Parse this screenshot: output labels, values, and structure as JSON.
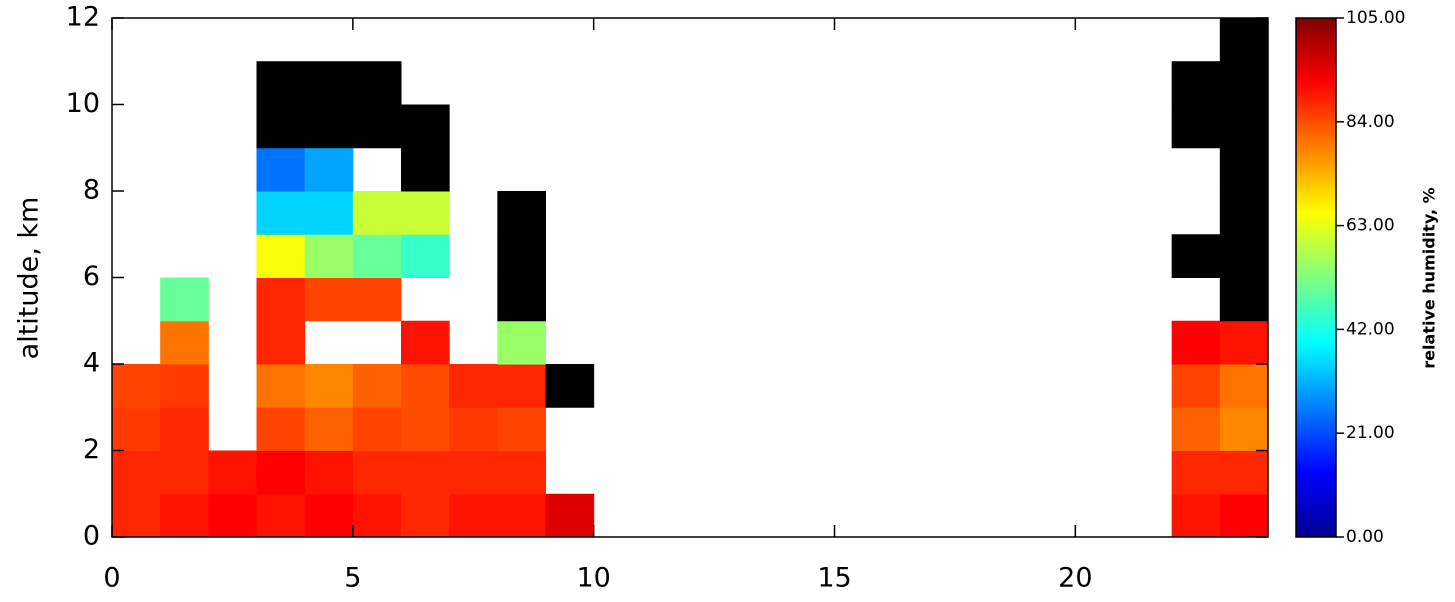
{
  "chart_data": {
    "type": "heatmap",
    "ylabel": "altitude, km",
    "colorbar_label": "relative humidity, %",
    "x": [
      0,
      1,
      2,
      3,
      4,
      5,
      6,
      7,
      8,
      9,
      10,
      11,
      12,
      13,
      14,
      15,
      16,
      17,
      18,
      19,
      20,
      21,
      22,
      23,
      24
    ],
    "y": [
      0,
      1,
      2,
      3,
      4,
      5,
      6,
      7,
      8,
      9,
      10,
      11,
      12
    ],
    "values": [
      [
        88,
        90,
        92,
        90,
        92,
        90,
        88,
        90,
        90,
        95,
        null,
        null,
        null,
        null,
        null,
        null,
        null,
        null,
        null,
        null,
        null,
        null,
        90,
        92
      ],
      [
        88,
        88,
        90,
        92,
        90,
        88,
        88,
        88,
        88,
        null,
        null,
        null,
        null,
        null,
        null,
        null,
        null,
        null,
        null,
        null,
        null,
        null,
        88,
        88
      ],
      [
        86,
        88,
        null,
        85,
        82,
        85,
        84,
        86,
        85,
        null,
        null,
        null,
        null,
        null,
        null,
        null,
        null,
        null,
        null,
        null,
        null,
        null,
        82,
        78
      ],
      [
        85,
        86,
        null,
        80,
        78,
        82,
        84,
        88,
        88,
        110,
        null,
        null,
        null,
        null,
        null,
        null,
        null,
        null,
        null,
        null,
        null,
        null,
        85,
        80
      ],
      [
        null,
        80,
        null,
        88,
        null,
        null,
        90,
        null,
        55,
        null,
        null,
        null,
        null,
        null,
        null,
        null,
        null,
        null,
        null,
        null,
        null,
        null,
        92,
        90
      ],
      [
        null,
        50,
        null,
        88,
        85,
        85,
        null,
        null,
        110,
        null,
        null,
        null,
        null,
        null,
        null,
        null,
        null,
        null,
        null,
        null,
        null,
        null,
        null,
        110
      ],
      [
        null,
        null,
        null,
        65,
        55,
        50,
        45,
        null,
        110,
        null,
        null,
        null,
        null,
        null,
        null,
        null,
        null,
        null,
        null,
        null,
        null,
        null,
        110,
        110
      ],
      [
        null,
        null,
        null,
        35,
        35,
        60,
        60,
        null,
        110,
        null,
        null,
        null,
        null,
        null,
        null,
        null,
        null,
        null,
        null,
        null,
        null,
        null,
        null,
        110
      ],
      [
        null,
        null,
        null,
        25,
        30,
        null,
        110,
        null,
        null,
        null,
        null,
        null,
        null,
        null,
        null,
        null,
        null,
        null,
        null,
        null,
        null,
        null,
        null,
        110
      ],
      [
        null,
        null,
        null,
        110,
        110,
        110,
        110,
        null,
        null,
        null,
        null,
        null,
        null,
        null,
        null,
        null,
        null,
        null,
        null,
        null,
        null,
        null,
        110,
        110
      ],
      [
        null,
        null,
        null,
        110,
        110,
        110,
        null,
        null,
        null,
        null,
        null,
        null,
        null,
        null,
        null,
        null,
        null,
        null,
        null,
        null,
        null,
        null,
        110,
        110
      ],
      [
        null,
        null,
        null,
        null,
        null,
        null,
        null,
        null,
        null,
        null,
        null,
        null,
        null,
        null,
        null,
        null,
        null,
        null,
        null,
        null,
        null,
        null,
        null,
        110
      ]
    ],
    "xlim": [
      0,
      24
    ],
    "ylim": [
      0,
      12
    ],
    "xticks": [
      0,
      5,
      10,
      15,
      20
    ],
    "yticks": [
      0,
      2,
      4,
      6,
      8,
      10,
      12
    ],
    "colorlim": [
      0,
      105
    ],
    "colorticks": [
      {
        "value": 0,
        "label": "0.00"
      },
      {
        "value": 21,
        "label": "21.00"
      },
      {
        "value": 42,
        "label": "42.00"
      },
      {
        "value": 63,
        "label": "63.00"
      },
      {
        "value": 84,
        "label": "84.00"
      },
      {
        "value": 105,
        "label": "105.00"
      }
    ],
    "over_color": "#000000"
  }
}
